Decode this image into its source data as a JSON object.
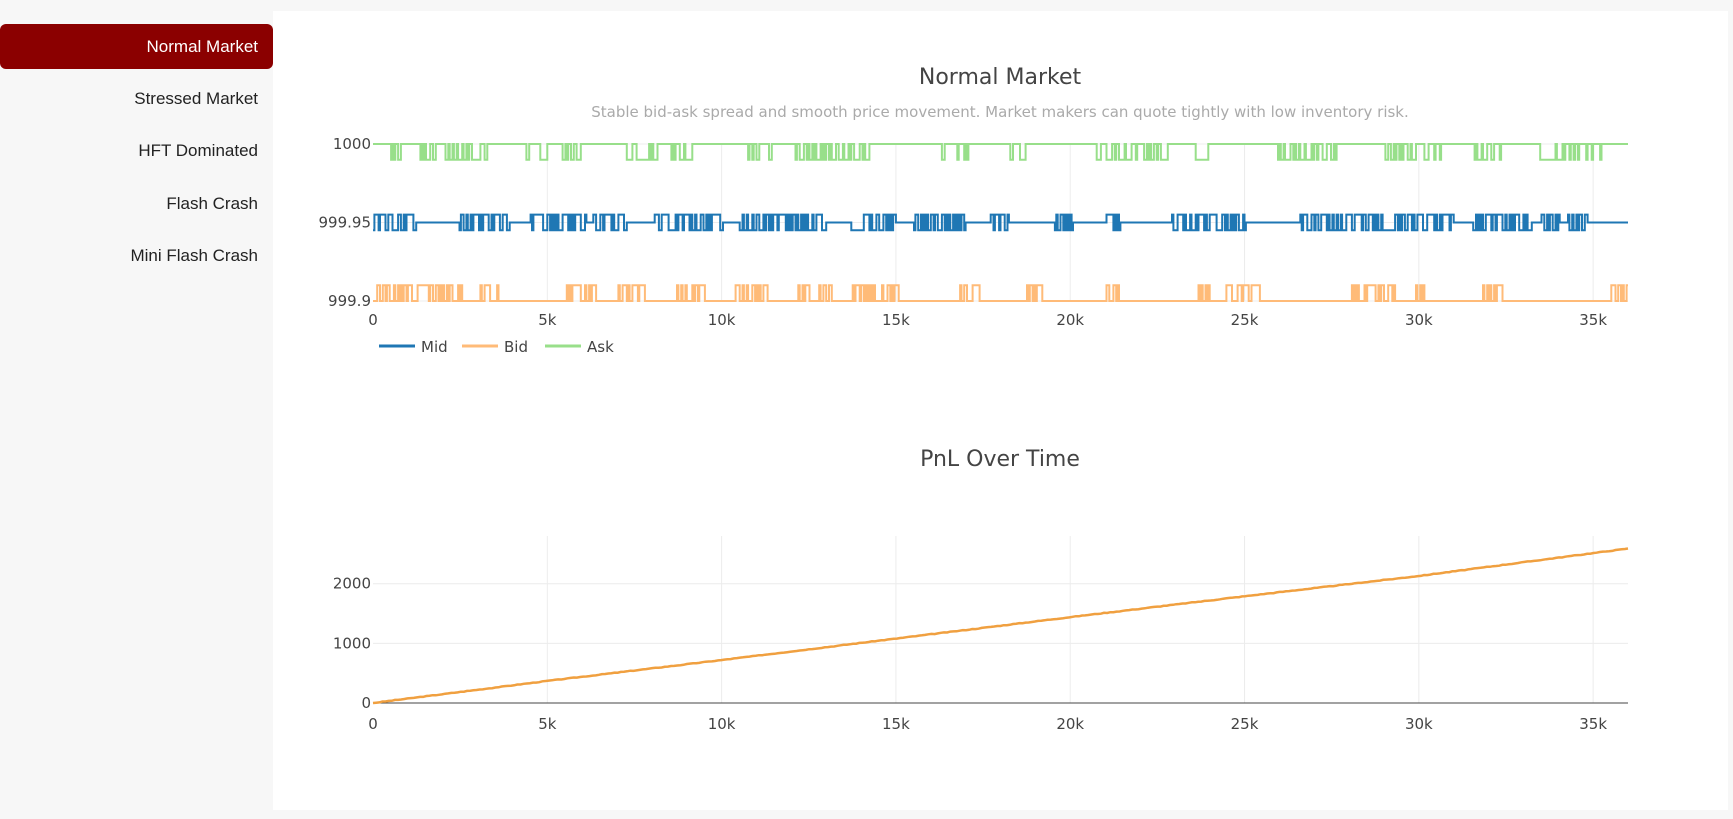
{
  "sidebar": {
    "items": [
      {
        "label": "Normal Market",
        "active": true
      },
      {
        "label": "Stressed Market",
        "active": false
      },
      {
        "label": "HFT Dominated",
        "active": false
      },
      {
        "label": "Flash Crash",
        "active": false
      },
      {
        "label": "Mini Flash Crash",
        "active": false
      }
    ],
    "active_color": "#8b0000"
  },
  "chart_data": [
    {
      "type": "line",
      "title": "Normal Market",
      "subtitle": "Stable bid-ask spread and smooth price movement. Market makers can quote tightly with low inventory risk.",
      "xlabel": "",
      "ylabel": "",
      "xlim": [
        0,
        36000
      ],
      "ylim": [
        999.9,
        1000
      ],
      "x_ticks": [
        0,
        5000,
        10000,
        15000,
        20000,
        25000,
        30000,
        35000
      ],
      "x_tick_labels": [
        "0",
        "5k",
        "10k",
        "15k",
        "20k",
        "25k",
        "30k",
        "35k"
      ],
      "y_ticks": [
        999.9,
        999.95,
        1000
      ],
      "y_tick_labels": [
        "999.9",
        "999.95",
        "1000"
      ],
      "grid": true,
      "legend": "bottom-left",
      "series": [
        {
          "name": "Mid",
          "color": "#1f77b4",
          "base": 999.95,
          "alt": [
            999.955,
            999.945
          ],
          "pattern": "oscillating"
        },
        {
          "name": "Bid",
          "color": "#ffbb78",
          "base": 999.9,
          "alt": [
            999.91
          ],
          "pattern": "intermittent spikes"
        },
        {
          "name": "Ask",
          "color": "#98df8a",
          "base": 1000,
          "alt": [
            999.99
          ],
          "pattern": "intermittent dips"
        }
      ]
    },
    {
      "type": "line",
      "title": "PnL Over Time",
      "xlabel": "",
      "ylabel": "",
      "xlim": [
        0,
        36000
      ],
      "ylim": [
        0,
        2800
      ],
      "x_ticks": [
        0,
        5000,
        10000,
        15000,
        20000,
        25000,
        30000,
        35000
      ],
      "x_tick_labels": [
        "0",
        "5k",
        "10k",
        "15k",
        "20k",
        "25k",
        "30k",
        "35k"
      ],
      "y_ticks": [
        0,
        1000,
        2000
      ],
      "y_tick_labels": [
        "0",
        "1000",
        "2000"
      ],
      "grid": true,
      "series": [
        {
          "name": "PnL",
          "color": "#f0a040",
          "x": [
            0,
            5000,
            10000,
            15000,
            20000,
            25000,
            30000,
            36000
          ],
          "y": [
            0,
            370,
            720,
            1080,
            1440,
            1790,
            2130,
            2590
          ]
        }
      ]
    }
  ]
}
